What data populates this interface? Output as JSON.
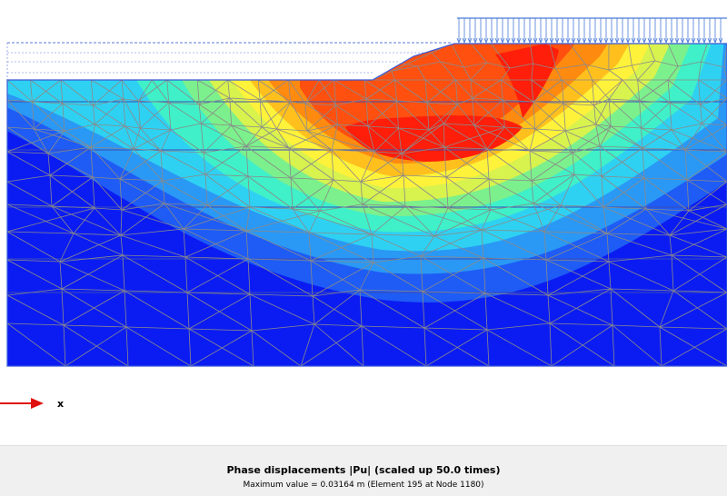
{
  "plot": {
    "axis_label": "x",
    "colors": {
      "level0": "#0b1cf2",
      "level1": "#1e5cf5",
      "level2": "#2a98f5",
      "level3": "#2fd1f2",
      "level4": "#3ff0c8",
      "level5": "#7cf08c",
      "level6": "#d8f24e",
      "level7": "#fff23a",
      "level8": "#ffc01e",
      "level9": "#ff8a10",
      "level10": "#ff5010",
      "level11": "#ff1e0a",
      "mesh": "#8a8a8a",
      "load": "#4a7ad8",
      "axis_arrow": "#e01010"
    }
  },
  "caption": {
    "title": "Phase displacements |Pu| (scaled up 50.0 times)",
    "subtitle": "Maximum value = 0.03164 m (Element 195 at Node 1180)"
  }
}
